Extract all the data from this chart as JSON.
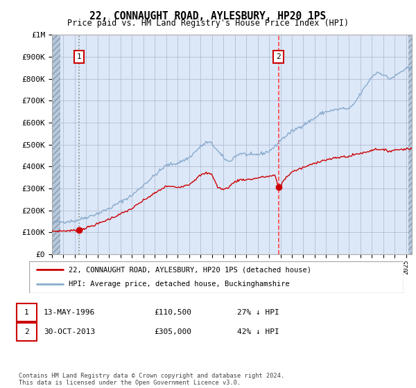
{
  "title": "22, CONNAUGHT ROAD, AYLESBURY, HP20 1PS",
  "subtitle": "Price paid vs. HM Land Registry's House Price Index (HPI)",
  "ylim": [
    0,
    1000000
  ],
  "yticks": [
    0,
    100000,
    200000,
    300000,
    400000,
    500000,
    600000,
    700000,
    800000,
    900000,
    1000000
  ],
  "ytick_labels": [
    "£0",
    "£100K",
    "£200K",
    "£300K",
    "£400K",
    "£500K",
    "£600K",
    "£700K",
    "£800K",
    "£900K",
    "£1M"
  ],
  "xlim_start": 1994.0,
  "xlim_end": 2025.5,
  "purchase1_x": 1996.37,
  "purchase1_y": 110500,
  "purchase1_label": "1",
  "purchase1_date": "13-MAY-1996",
  "purchase1_price": "£110,500",
  "purchase1_hpi": "27% ↓ HPI",
  "purchase2_x": 2013.83,
  "purchase2_y": 305000,
  "purchase2_label": "2",
  "purchase2_date": "30-OCT-2013",
  "purchase2_price": "£305,000",
  "purchase2_hpi": "42% ↓ HPI",
  "red_line_color": "#cc0000",
  "blue_line_color": "#88aacc",
  "purchase1_vline_color": "#888888",
  "purchase2_vline_color": "#ff4444",
  "marker_color": "#cc0000",
  "legend_label_red": "22, CONNAUGHT ROAD, AYLESBURY, HP20 1PS (detached house)",
  "legend_label_blue": "HPI: Average price, detached house, Buckinghamshire",
  "footnote": "Contains HM Land Registry data © Crown copyright and database right 2024.\nThis data is licensed under the Open Government Licence v3.0.",
  "plot_bg": "#dce8f8",
  "hatch_left_end": 1994.75,
  "hatch_right_start": 2025.17
}
